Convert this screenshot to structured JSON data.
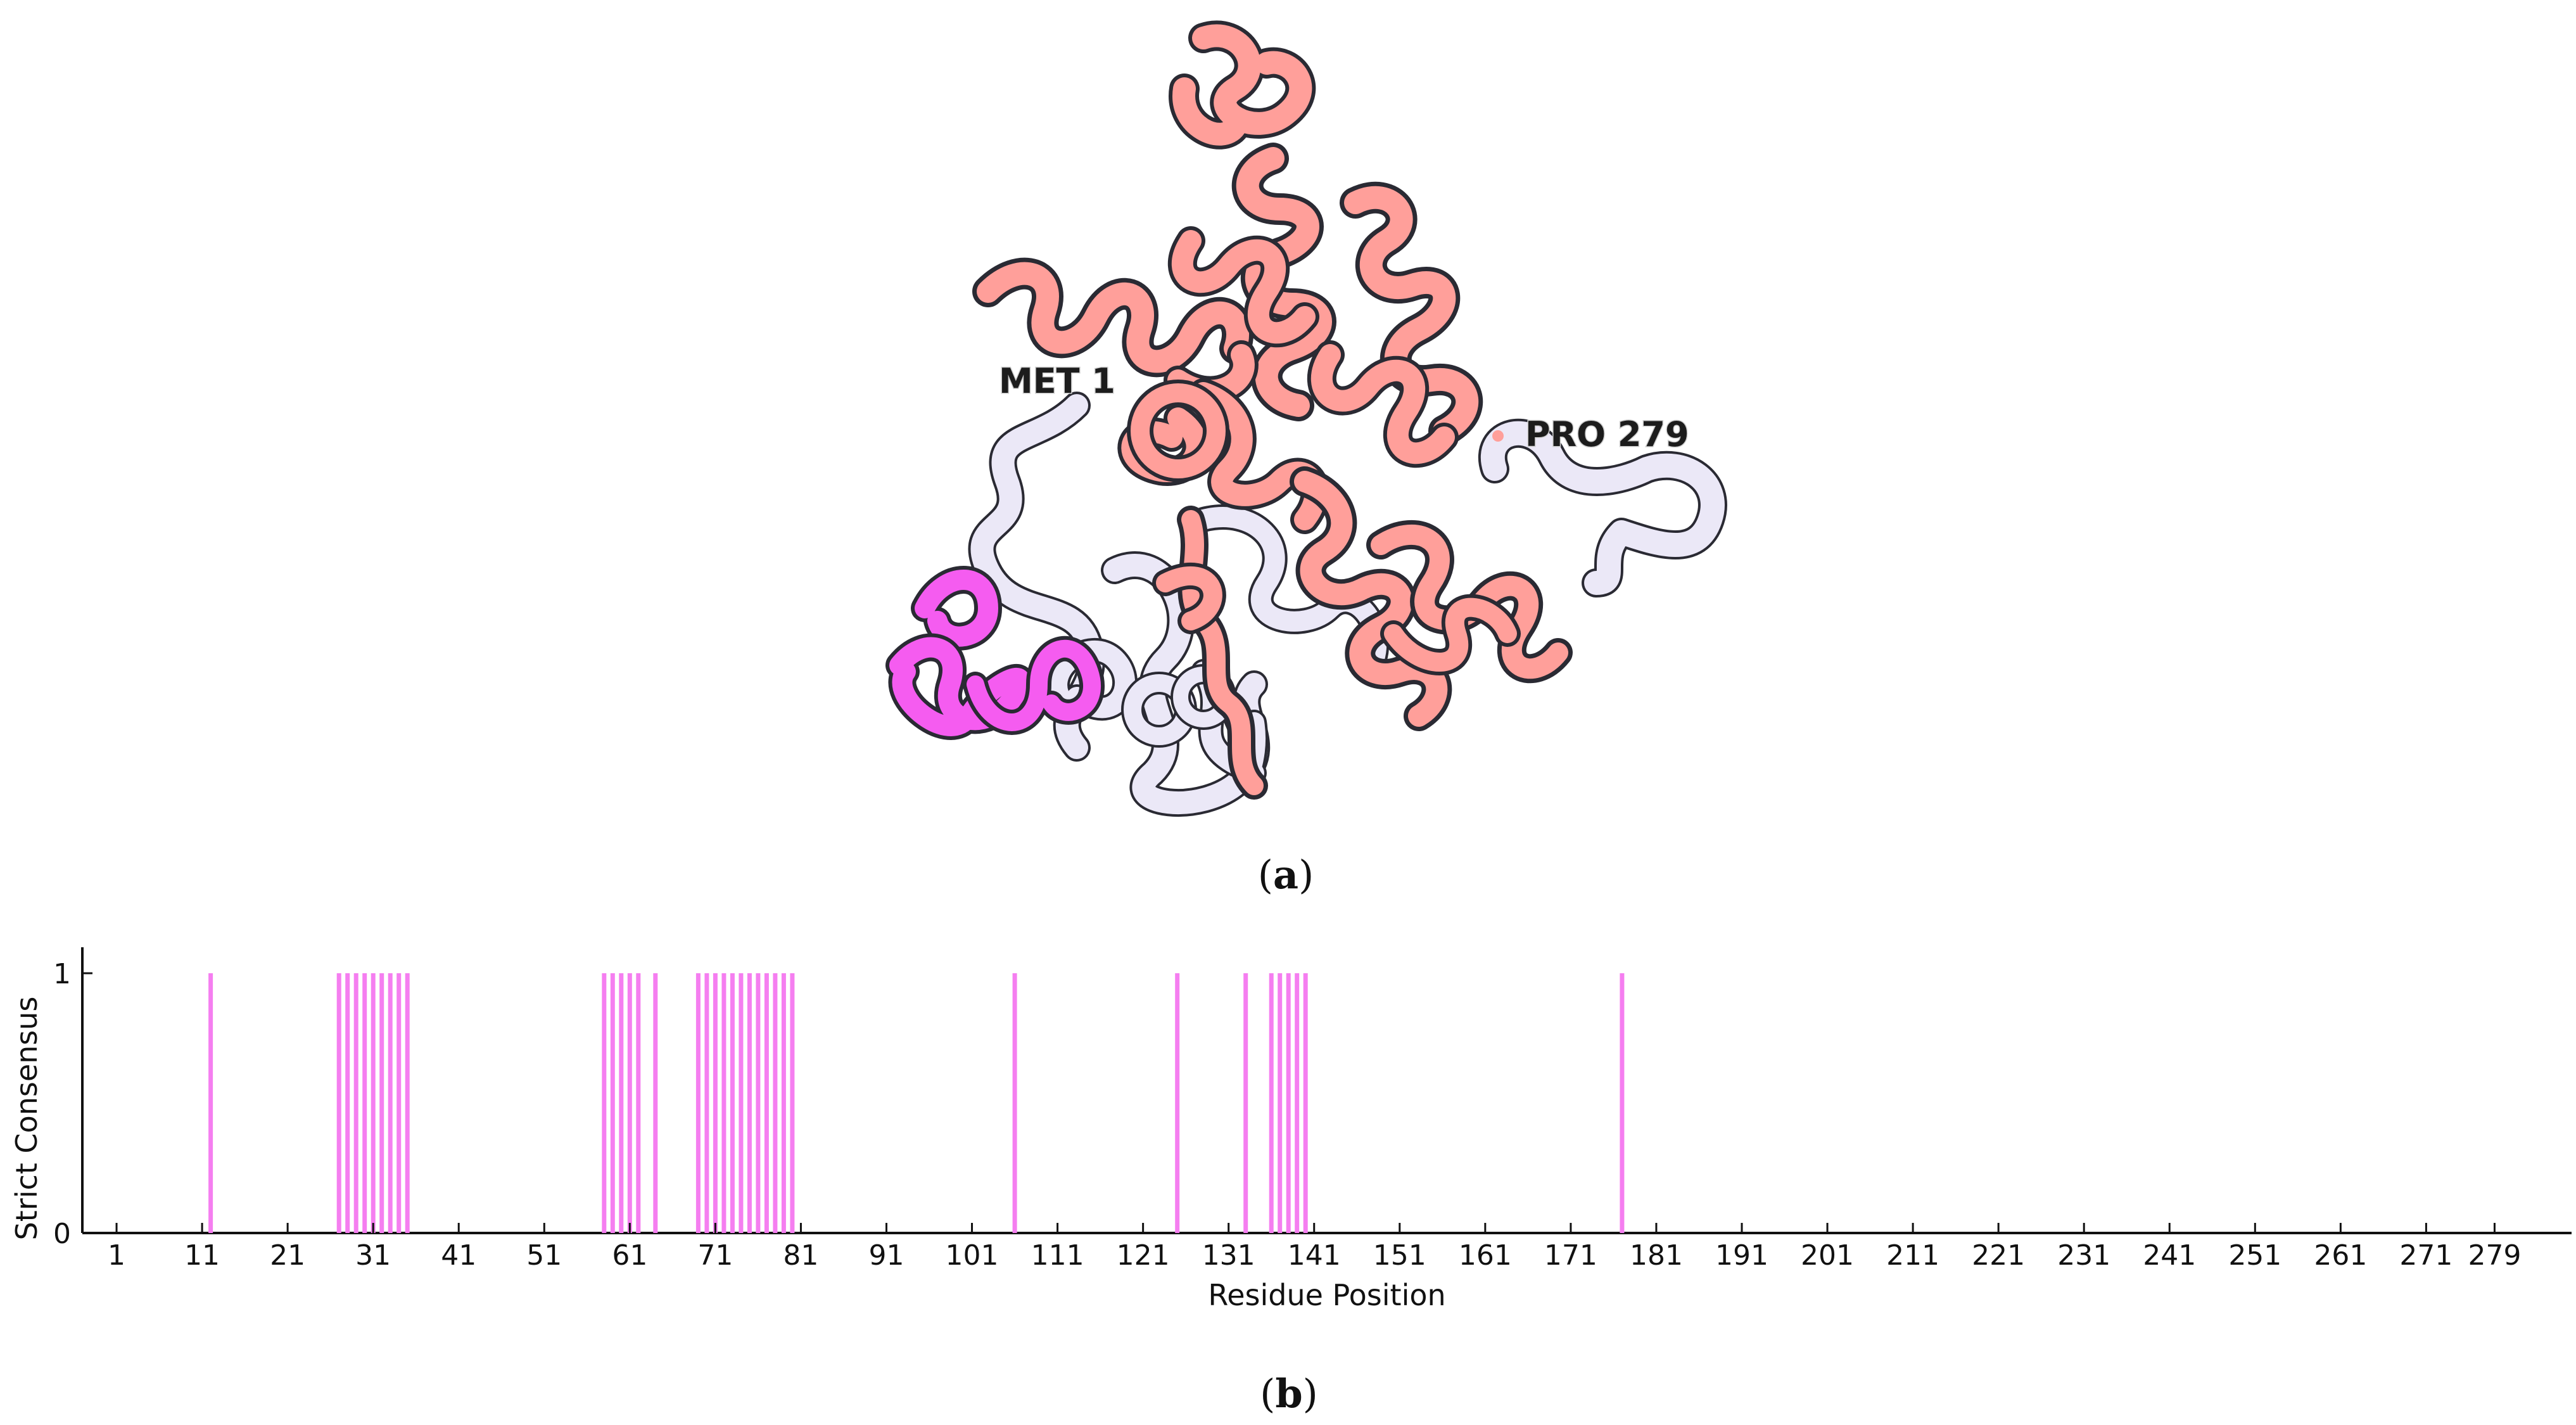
{
  "panel_a": {
    "label_open": "(",
    "label_letter": "a",
    "label_close": ")",
    "annotations": {
      "start_residue": "MET 1",
      "end_residue": "PRO 279"
    },
    "colors": {
      "coil": "#ebe8f7",
      "helix_highlight": "#ff9f9a",
      "consensus_highlight": "#f55cf0",
      "outline": "#2a2a33"
    }
  },
  "panel_b": {
    "label_open": "(",
    "label_letter": "b",
    "label_close": ")"
  },
  "chart_data": {
    "type": "bar",
    "title": "",
    "xlabel": "Residue Position",
    "ylabel": "Strict Consensus",
    "xlim": [
      -3,
      288
    ],
    "ylim": [
      0,
      1.1
    ],
    "y_ticks": [
      0,
      1
    ],
    "x_ticks": [
      1,
      11,
      21,
      31,
      41,
      51,
      61,
      71,
      81,
      91,
      101,
      111,
      121,
      131,
      141,
      151,
      161,
      171,
      181,
      191,
      201,
      211,
      221,
      231,
      241,
      251,
      261,
      271,
      279
    ],
    "bar_color": "#f57ef0",
    "grid": false,
    "positions": [
      12,
      27,
      28,
      29,
      30,
      31,
      32,
      33,
      34,
      35,
      58,
      59,
      60,
      61,
      62,
      64,
      69,
      70,
      71,
      72,
      73,
      74,
      75,
      76,
      77,
      78,
      79,
      80,
      106,
      125,
      133,
      136,
      137,
      138,
      139,
      140,
      177
    ],
    "values": [
      1,
      1,
      1,
      1,
      1,
      1,
      1,
      1,
      1,
      1,
      1,
      1,
      1,
      1,
      1,
      1,
      1,
      1,
      1,
      1,
      1,
      1,
      1,
      1,
      1,
      1,
      1,
      1,
      1,
      1,
      1,
      1,
      1,
      1,
      1,
      1,
      1
    ]
  }
}
